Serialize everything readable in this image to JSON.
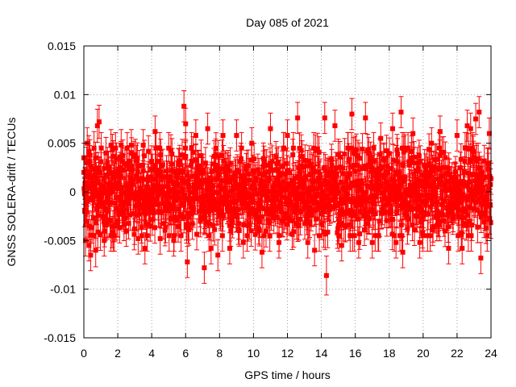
{
  "chart_data": {
    "type": "scatter",
    "title": "Day 085 of 2021",
    "xlabel": "GPS time / hours",
    "ylabel": "GNSS SOLERA-drift / TECUs",
    "xlim": [
      0,
      24
    ],
    "ylim": [
      -0.015,
      0.015
    ],
    "xticks": [
      0,
      2,
      4,
      6,
      8,
      10,
      12,
      14,
      16,
      18,
      20,
      22,
      24
    ],
    "xtick_labels": [
      "0",
      "2",
      "4",
      "6",
      "8",
      "10",
      "12",
      "14",
      "16",
      "18",
      "20",
      "22",
      "24"
    ],
    "yticks": [
      -0.015,
      -0.01,
      -0.005,
      0,
      0.005,
      0.01,
      0.015
    ],
    "ytick_labels": [
      "-0.015",
      "-0.01",
      "-0.005",
      "0",
      "0.005",
      "0.01",
      "0.015"
    ],
    "grid": true,
    "legend": "none",
    "marker_color": "#ff0000",
    "series": [
      {
        "marker": "filled-square",
        "error_bars": true,
        "points": [
          {
            "x": 0.0,
            "y": 0.0035,
            "err": 0.0015
          },
          {
            "x": 0.05,
            "y": -0.002,
            "err": 0.0016
          },
          {
            "x": 0.1,
            "y": -0.005,
            "err": 0.0016
          },
          {
            "x": 0.2,
            "y": 0.005,
            "err": 0.0016
          },
          {
            "x": 0.3,
            "y": -0.0055,
            "err": 0.0016
          },
          {
            "x": 0.4,
            "y": -0.0065,
            "err": 0.0016
          },
          {
            "x": 0.6,
            "y": 0.0045,
            "err": 0.0017
          },
          {
            "x": 0.7,
            "y": -0.006,
            "err": 0.0017
          },
          {
            "x": 0.8,
            "y": 0.0068,
            "err": 0.0017
          },
          {
            "x": 0.9,
            "y": 0.0072,
            "err": 0.0017
          },
          {
            "x": 1.2,
            "y": -0.005,
            "err": 0.0016
          },
          {
            "x": 1.3,
            "y": 0.004,
            "err": 0.0016
          },
          {
            "x": 1.6,
            "y": 0.0048,
            "err": 0.0016
          },
          {
            "x": 1.8,
            "y": -0.0045,
            "err": 0.0016
          },
          {
            "x": 2.2,
            "y": 0.0048,
            "err": 0.0016
          },
          {
            "x": 2.5,
            "y": -0.004,
            "err": 0.0016
          },
          {
            "x": 2.8,
            "y": 0.0048,
            "err": 0.0016
          },
          {
            "x": 3.2,
            "y": -0.0048,
            "err": 0.0016
          },
          {
            "x": 3.5,
            "y": 0.0048,
            "err": 0.0016
          },
          {
            "x": 3.6,
            "y": -0.0058,
            "err": 0.0016
          },
          {
            "x": 4.2,
            "y": 0.0062,
            "err": 0.0016
          },
          {
            "x": 4.5,
            "y": -0.0048,
            "err": 0.0016
          },
          {
            "x": 5.0,
            "y": 0.0045,
            "err": 0.0016
          },
          {
            "x": 5.3,
            "y": -0.005,
            "err": 0.0016
          },
          {
            "x": 5.9,
            "y": 0.0088,
            "err": 0.0016
          },
          {
            "x": 6.0,
            "y": 0.007,
            "err": 0.0016
          },
          {
            "x": 6.1,
            "y": -0.0072,
            "err": 0.0016
          },
          {
            "x": 6.6,
            "y": 0.0058,
            "err": 0.0016
          },
          {
            "x": 7.1,
            "y": -0.0078,
            "err": 0.0016
          },
          {
            "x": 7.3,
            "y": 0.0065,
            "err": 0.0016
          },
          {
            "x": 7.5,
            "y": -0.0058,
            "err": 0.0016
          },
          {
            "x": 7.9,
            "y": -0.0065,
            "err": 0.0016
          },
          {
            "x": 8.2,
            "y": 0.0058,
            "err": 0.0016
          },
          {
            "x": 8.6,
            "y": -0.0058,
            "err": 0.0016
          },
          {
            "x": 9.0,
            "y": 0.0058,
            "err": 0.0016
          },
          {
            "x": 9.4,
            "y": -0.0052,
            "err": 0.0016
          },
          {
            "x": 9.9,
            "y": 0.005,
            "err": 0.0016
          },
          {
            "x": 10.5,
            "y": -0.0062,
            "err": 0.0016
          },
          {
            "x": 11.0,
            "y": 0.0065,
            "err": 0.0016
          },
          {
            "x": 11.5,
            "y": -0.0052,
            "err": 0.0016
          },
          {
            "x": 12.0,
            "y": 0.0058,
            "err": 0.0016
          },
          {
            "x": 12.6,
            "y": 0.0076,
            "err": 0.0016
          },
          {
            "x": 13.2,
            "y": -0.0052,
            "err": 0.0016
          },
          {
            "x": 13.6,
            "y": -0.006,
            "err": 0.0016
          },
          {
            "x": 14.2,
            "y": 0.0076,
            "err": 0.0016
          },
          {
            "x": 14.3,
            "y": -0.0086,
            "err": 0.002
          },
          {
            "x": 14.8,
            "y": 0.0068,
            "err": 0.0016
          },
          {
            "x": 15.2,
            "y": -0.0055,
            "err": 0.0016
          },
          {
            "x": 15.8,
            "y": 0.008,
            "err": 0.0016
          },
          {
            "x": 16.2,
            "y": -0.0052,
            "err": 0.0016
          },
          {
            "x": 16.6,
            "y": 0.0076,
            "err": 0.0016
          },
          {
            "x": 17.0,
            "y": -0.0052,
            "err": 0.0016
          },
          {
            "x": 17.5,
            "y": 0.0055,
            "err": 0.0016
          },
          {
            "x": 18.2,
            "y": 0.0065,
            "err": 0.0016
          },
          {
            "x": 18.4,
            "y": -0.0052,
            "err": 0.0016
          },
          {
            "x": 18.7,
            "y": 0.0082,
            "err": 0.0016
          },
          {
            "x": 18.8,
            "y": -0.0062,
            "err": 0.0016
          },
          {
            "x": 19.4,
            "y": 0.006,
            "err": 0.0016
          },
          {
            "x": 19.8,
            "y": -0.0052,
            "err": 0.0016
          },
          {
            "x": 20.5,
            "y": 0.005,
            "err": 0.0016
          },
          {
            "x": 21.0,
            "y": 0.0062,
            "err": 0.0016
          },
          {
            "x": 21.5,
            "y": -0.0058,
            "err": 0.0016
          },
          {
            "x": 22.0,
            "y": 0.0058,
            "err": 0.0016
          },
          {
            "x": 22.3,
            "y": -0.0058,
            "err": 0.0016
          },
          {
            "x": 22.6,
            "y": 0.0068,
            "err": 0.0016
          },
          {
            "x": 22.8,
            "y": 0.0065,
            "err": 0.0016
          },
          {
            "x": 23.1,
            "y": 0.0075,
            "err": 0.0016
          },
          {
            "x": 23.3,
            "y": 0.0082,
            "err": 0.0016
          },
          {
            "x": 23.4,
            "y": -0.0068,
            "err": 0.0016
          },
          {
            "x": 23.9,
            "y": 0.006,
            "err": 0.0016
          }
        ],
        "dense_band": {
          "x_range": [
            0,
            24
          ],
          "count": 1400,
          "center": 0.0,
          "spread_sd": 0.0022,
          "err": 0.0016
        }
      }
    ]
  }
}
